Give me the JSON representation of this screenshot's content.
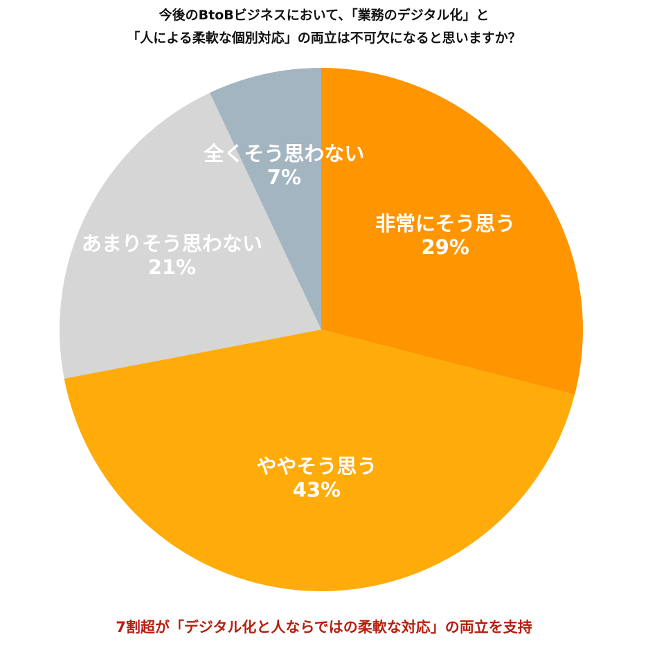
{
  "chart_data": {
    "type": "pie",
    "title_lines": [
      "今後のBtoBビジネスにおいて、「業務のデジタル化」と",
      "「人による柔軟な個別対応」の両立は不可欠になると思いますか？"
    ],
    "slices": [
      {
        "label": "非常にそう思う",
        "value": 29,
        "value_label": "29%",
        "color": "#ff9500"
      },
      {
        "label": "ややそう思う",
        "value": 43,
        "value_label": "43%",
        "color": "#ffab0a"
      },
      {
        "label": "あまりそう思わない",
        "value": 21,
        "value_label": "21%",
        "color": "#d6d6d6"
      },
      {
        "label": "全くそう思わない",
        "value": 7,
        "value_label": "7%",
        "color": "#a3b5c1"
      }
    ],
    "start_angle": "12 o'clock",
    "direction": "clockwise",
    "legend": "none"
  },
  "footnote": "7割超が「デジタル化と人ならではの柔軟な対応」の両立を支持",
  "colors": {
    "title": "#111111",
    "footnote": "#b5200e",
    "label_text": "#ffffff"
  }
}
